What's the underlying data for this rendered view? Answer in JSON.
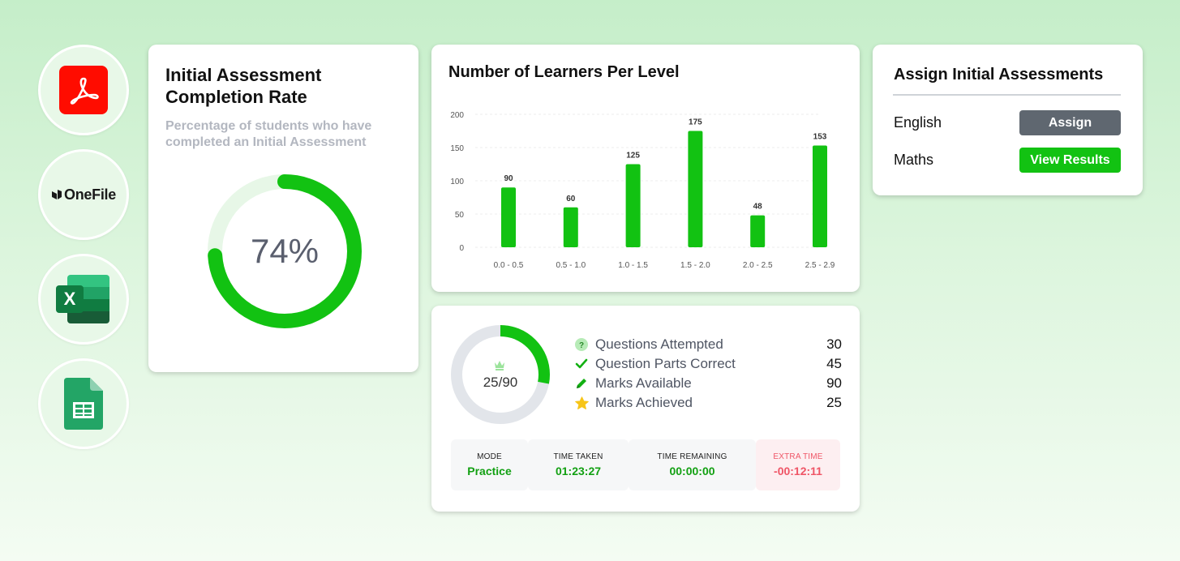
{
  "apps": [
    {
      "name": "pdf",
      "icon": "adobe-acrobat-icon"
    },
    {
      "name": "onefile",
      "label": "OneFile",
      "icon": "onefile-logo"
    },
    {
      "name": "excel",
      "icon": "excel-icon",
      "letter": "X"
    },
    {
      "name": "sheets",
      "icon": "google-sheets-icon"
    }
  ],
  "completion": {
    "title": "Initial Assessment Completion Rate",
    "subtitle": "Percentage of students who have completed an Initial Assessment",
    "percent_label": "74%",
    "percent": 74
  },
  "learners_chart": {
    "title": "Number of Learners Per Level",
    "chart_data": {
      "type": "bar",
      "categories": [
        "0.0 - 0.5",
        "0.5 - 1.0",
        "1.0 - 1.5",
        "1.5 - 2.0",
        "2.0 - 2.5",
        "2.5 - 2.9"
      ],
      "values": [
        90,
        60,
        125,
        175,
        48,
        153
      ],
      "value_labels": [
        "90",
        "60",
        "125",
        "175",
        "48",
        "153"
      ],
      "yticks": [
        "0",
        "50",
        "100",
        "150",
        "200"
      ],
      "ylim": [
        0,
        200
      ],
      "grid": true,
      "color": "#12c212"
    }
  },
  "assign": {
    "title": "Assign Initial Assessments",
    "rows": [
      {
        "subject": "English",
        "button": "Assign",
        "button_color": "#5f6770"
      },
      {
        "subject": "Maths",
        "button": "View Results",
        "button_color": "#12c212"
      }
    ]
  },
  "stats": {
    "score_label": "25/90",
    "score_fraction": 0.28,
    "rows": [
      {
        "icon": "question-icon",
        "label": "Questions Attempted",
        "value": "30"
      },
      {
        "icon": "check-icon",
        "label": "Question Parts Correct",
        "value": "45"
      },
      {
        "icon": "pencil-icon",
        "label": "Marks Available",
        "value": "90"
      },
      {
        "icon": "star-icon",
        "label": "Marks Achieved",
        "value": "25"
      }
    ],
    "info": [
      {
        "key": "MODE",
        "value": "Practice",
        "color": "#12a012"
      },
      {
        "key": "TIME TAKEN",
        "value": "01:23:27",
        "color": "#12a012"
      },
      {
        "key": "TIME REMAINING",
        "value": "00:00:00",
        "color": "#12a012"
      },
      {
        "key": "EXTRA TIME",
        "value": "-00:12:11",
        "color": "#ef5566"
      }
    ]
  },
  "colors": {
    "accent": "#12c212",
    "track": "#e2e5ea",
    "danger": "#ef5566"
  }
}
